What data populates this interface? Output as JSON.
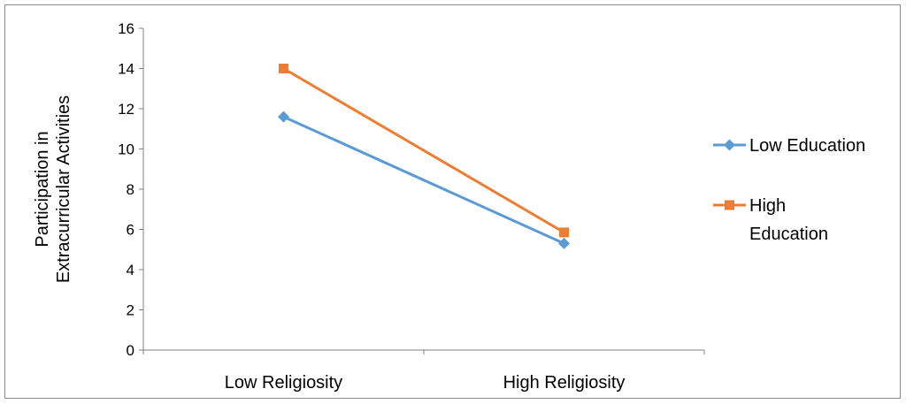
{
  "chart_data": {
    "type": "line",
    "categories": [
      "Low Religiosity",
      "High Religiosity"
    ],
    "series": [
      {
        "name": "Low Education",
        "values": [
          11.6,
          5.3
        ],
        "color": "#5b9bd5",
        "marker": "diamond"
      },
      {
        "name": "High Education",
        "values": [
          14.0,
          5.85
        ],
        "color": "#ed7d31",
        "marker": "square"
      }
    ],
    "title": "",
    "xlabel": "",
    "ylabel": "Participation in Extracurricular Activities",
    "ylabel_lines": [
      "Participation in",
      "Extracurricular Activities"
    ],
    "ylim": [
      0,
      16
    ],
    "yticks": [
      "0",
      "2",
      "4",
      "6",
      "8",
      "10",
      "12",
      "14",
      "16"
    ],
    "legend_position": "right",
    "legend_lines": [
      [
        "Low Education"
      ],
      [
        "High",
        "Education"
      ]
    ],
    "grid": false
  }
}
